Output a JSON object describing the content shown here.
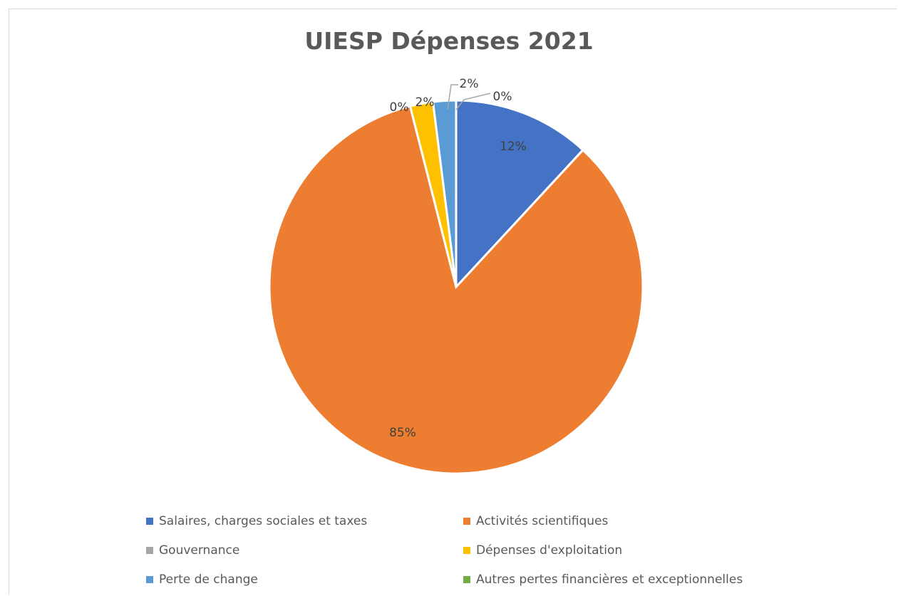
{
  "chart_data": {
    "type": "pie",
    "title": "UIESP Dépenses 2021",
    "slices": [
      {
        "name": "Salaires, charges sociales et taxes",
        "value": 12,
        "label": "12%",
        "color": "#4472C4"
      },
      {
        "name": "Activités scientifiques",
        "value": 85,
        "label": "85%",
        "color": "#ED7D31"
      },
      {
        "name": "Gouvernance",
        "value": 0,
        "label": "0%",
        "color": "#A5A5A5"
      },
      {
        "name": "Dépenses d'exploitation",
        "value": 2,
        "label": "2%",
        "color": "#FFC000"
      },
      {
        "name": "Perte de change",
        "value": 2,
        "label": "2%",
        "color": "#5B9BD5"
      },
      {
        "name": "Autres pertes financières et exceptionnelles",
        "value": 0,
        "label": "0%",
        "color": "#70AD47"
      }
    ],
    "legend_placement": "bottom"
  }
}
